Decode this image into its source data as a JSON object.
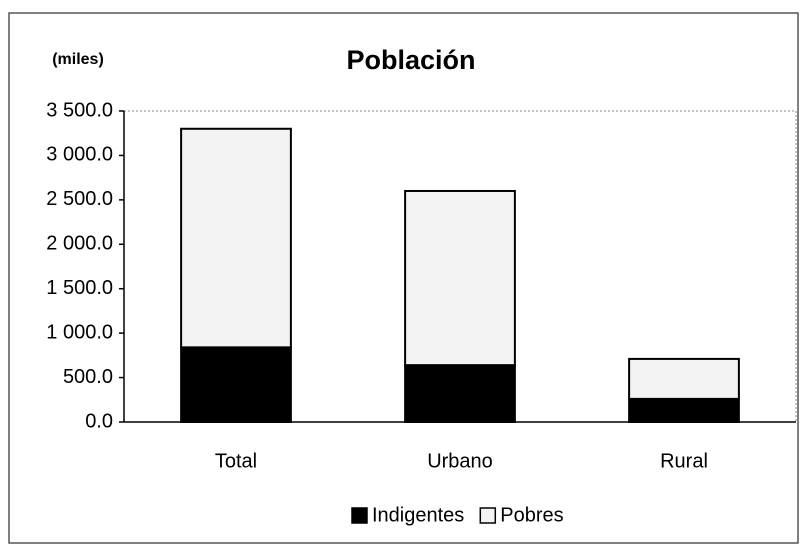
{
  "chart_data": {
    "type": "stacked_bar",
    "title": "Población",
    "y_label": "(miles)",
    "categories": [
      "Total",
      "Urbano",
      "Rural"
    ],
    "series": [
      {
        "name": "Indigentes",
        "color": "#000000",
        "values": [
          840,
          640,
          260
        ]
      },
      {
        "name": "Pobres",
        "color": "#f3f3f3",
        "values": [
          2460,
          1960,
          450
        ]
      }
    ],
    "ylim": [
      0,
      3500
    ],
    "yticks": [
      {
        "value": 0,
        "label": "0.0"
      },
      {
        "value": 500,
        "label": "500.0"
      },
      {
        "value": 1000,
        "label": "1 000.0"
      },
      {
        "value": 1500,
        "label": "1 500.0"
      },
      {
        "value": 2000,
        "label": "2 000.0"
      },
      {
        "value": 2500,
        "label": "2 500.0"
      },
      {
        "value": 3000,
        "label": "3 000.0"
      },
      {
        "value": 3500,
        "label": "3 500.0"
      }
    ],
    "legend": "bottom"
  }
}
